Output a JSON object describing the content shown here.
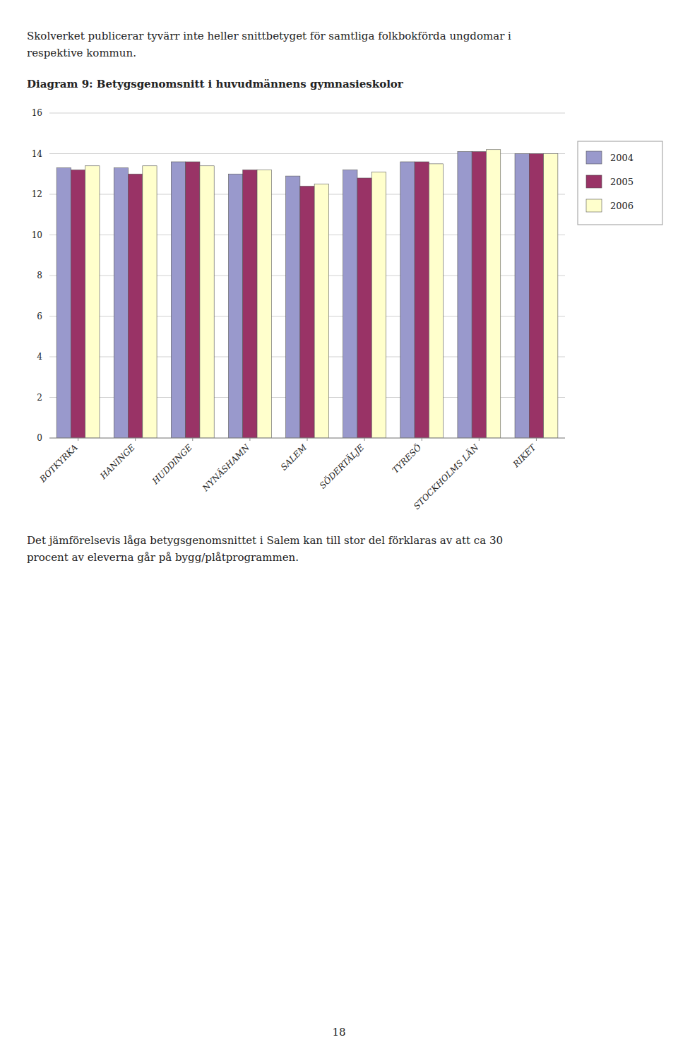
{
  "chart_data": {
    "type": "bar",
    "title": "Diagram 9: Betygsgenomsnitt i huvudmännens gymnasieskolor",
    "categories": [
      "BOTKYRKA",
      "HANINGE",
      "HUDDINGE",
      "NYNÄSHAMN",
      "SALEM",
      "SÖDERTÄLJE",
      "TYRESÖ",
      "STOCKHOLMS LÄN",
      "RIKET"
    ],
    "series": [
      {
        "name": "2004",
        "color": "#9999CC",
        "values": [
          13.3,
          13.3,
          13.6,
          13.0,
          12.9,
          13.2,
          13.6,
          14.1,
          14.0
        ]
      },
      {
        "name": "2005",
        "color": "#993366",
        "values": [
          13.2,
          13.0,
          13.6,
          13.2,
          12.4,
          12.8,
          13.6,
          14.1,
          14.0
        ]
      },
      {
        "name": "2006",
        "color": "#FFFFCC",
        "values": [
          13.4,
          13.4,
          13.4,
          13.2,
          12.5,
          13.1,
          13.5,
          14.2,
          14.0
        ]
      }
    ],
    "ylim": [
      0,
      16
    ],
    "yticks": [
      0,
      2,
      4,
      6,
      8,
      10,
      12,
      14,
      16
    ],
    "grid": true,
    "legend": "right"
  },
  "text_above": [
    "Skolverket publicerar tyvärr inte heller snittbetyget för samtliga folkbokförda ungdomar i",
    "respektive kommun."
  ],
  "text_below": [
    "Det jämförelsevis låga betygsgenomsnittet i Salem kan till stor del förklaras av att ca 30",
    "procent av eleverna går på bygg/plåtprogrammen."
  ],
  "page_number": "18"
}
